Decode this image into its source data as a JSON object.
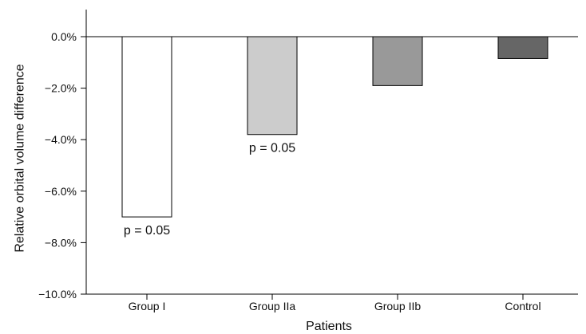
{
  "chart_data": {
    "type": "bar",
    "title": "",
    "xlabel": "Patients",
    "ylabel": "Relative orbital volume difference",
    "categories": [
      "Group I",
      "Group IIa",
      "Group IIb",
      "Control"
    ],
    "values": [
      -7.0,
      -3.8,
      -1.9,
      -0.85
    ],
    "bar_colors": [
      "#ffffff",
      "#cccccc",
      "#999999",
      "#666666"
    ],
    "ylim": [
      -10.0,
      1.0
    ],
    "yticks": [
      0.0,
      -2.0,
      -4.0,
      -6.0,
      -8.0,
      -10.0
    ],
    "ytick_labels": [
      "0.0%",
      "−2.0%",
      "−4.0%",
      "−6.0%",
      "−8.0%",
      "−10.0%"
    ],
    "annotations": [
      {
        "category": "Group I",
        "text": "p = 0.05"
      },
      {
        "category": "Group IIa",
        "text": "p = 0.05"
      }
    ],
    "grid": false,
    "legend": "none"
  }
}
